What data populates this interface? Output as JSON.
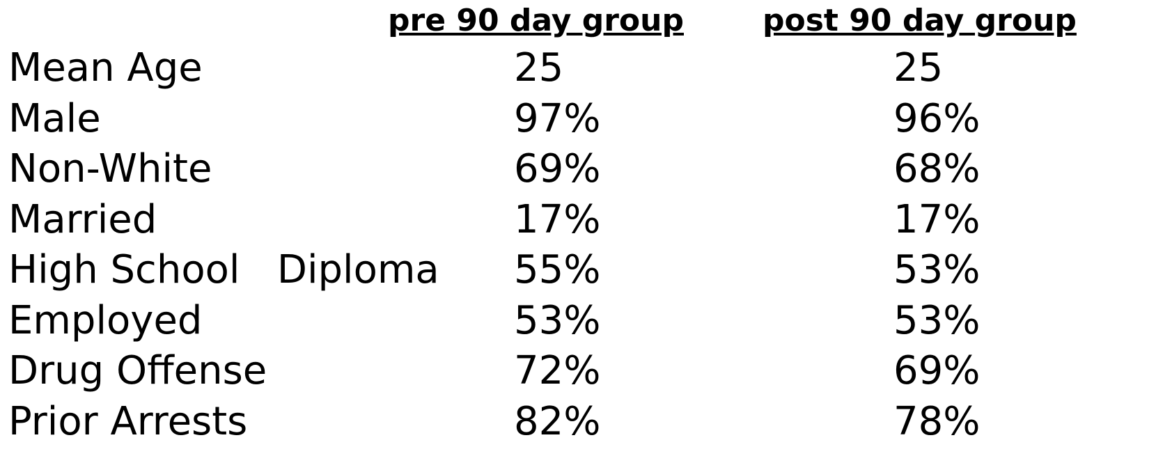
{
  "table": {
    "header": [
      "pre 90 day group",
      "post 90 day group"
    ],
    "rows": [
      [
        "Mean Age",
        "25",
        "25"
      ],
      [
        "Male",
        "97%",
        "96%"
      ],
      [
        "Non-White",
        "69%",
        "68%"
      ],
      [
        "Married",
        "17%",
        "17%"
      ],
      [
        "High School   Diploma",
        "55%",
        "53%"
      ],
      [
        "Employed",
        "53%",
        "53%"
      ],
      [
        "Drug Offense",
        "72%",
        "69%"
      ],
      [
        "Prior Arrests",
        "82%",
        "78%"
      ]
    ]
  }
}
